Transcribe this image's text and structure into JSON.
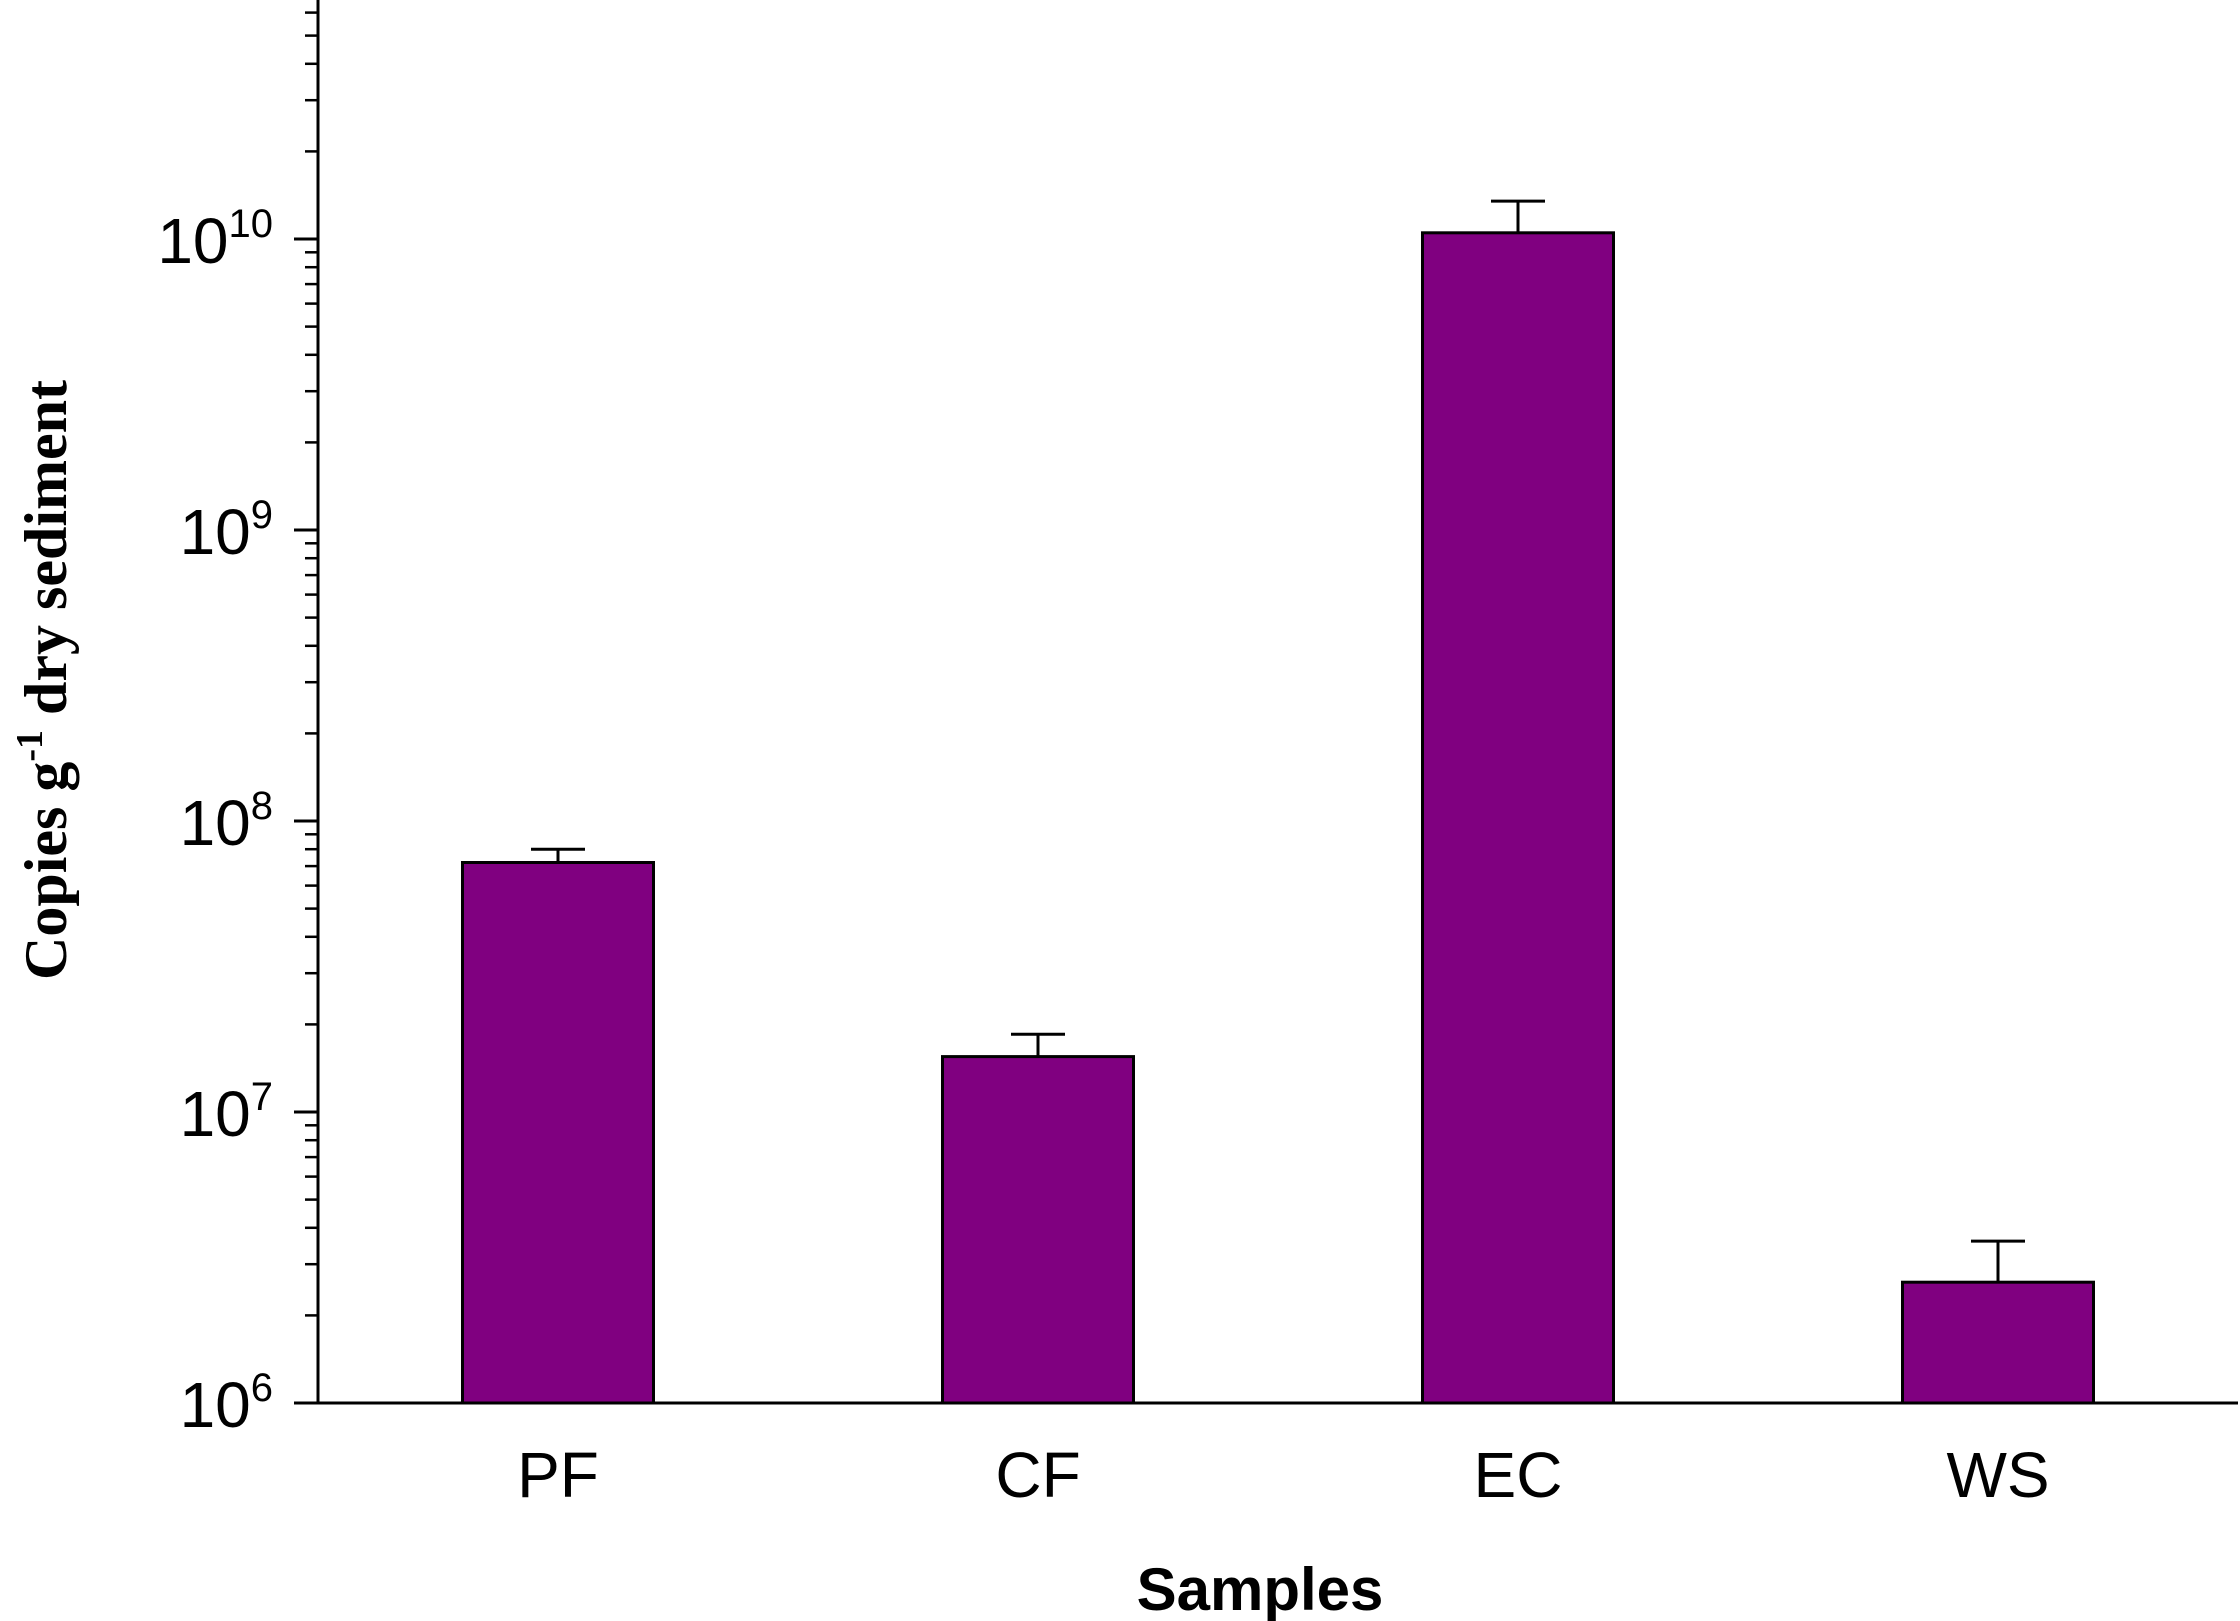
{
  "chart_data": {
    "type": "bar",
    "categories": [
      "PF",
      "CF",
      "EC",
      "WS"
    ],
    "values": [
      72000000,
      15500000,
      10500000000,
      2600000
    ],
    "error_upper": [
      80000000,
      18500000,
      13500000000,
      3600000
    ],
    "xlabel": "Samples",
    "ylabel": {
      "prefix": "Copies g",
      "superscript": "-1",
      "suffix": " dry sediment"
    },
    "yscale": "log",
    "ylim": [
      1000000,
      100000000000
    ],
    "yticks": [
      {
        "base": "10",
        "exp": "6"
      },
      {
        "base": "10",
        "exp": "7"
      },
      {
        "base": "10",
        "exp": "8"
      },
      {
        "base": "10",
        "exp": "9"
      },
      {
        "base": "10",
        "exp": "10"
      }
    ],
    "grid": false,
    "bar_color": "#800080",
    "edge_color": "#000000"
  }
}
